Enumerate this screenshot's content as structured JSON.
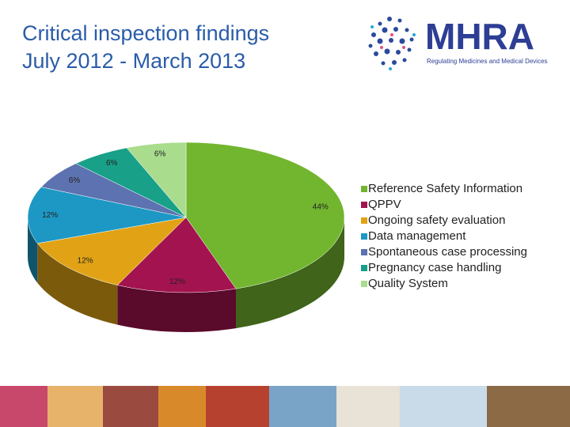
{
  "title": [
    "Critical inspection findings",
    "July 2012 - March 2013"
  ],
  "logo": {
    "name": "MHRA",
    "tagline": "Regulating Medicines and Medical Devices"
  },
  "chart_data": {
    "type": "pie",
    "categories": [
      "Reference Safety Information",
      "QPPV",
      "Ongoing safety evaluation",
      "Data management",
      "Spontaneous case processing",
      "Pregnancy case handling",
      "Quality System"
    ],
    "values": [
      44,
      12,
      12,
      12,
      6,
      6,
      6
    ],
    "value_labels": [
      "44%",
      "12%",
      "12%",
      "12%",
      "6%",
      "6%",
      "6%"
    ],
    "colors": [
      "#72b52f",
      "#a3134f",
      "#e1a315",
      "#1d98c4",
      "#5d72b0",
      "#18a089",
      "#a9dc8d"
    ],
    "legend": "right"
  }
}
